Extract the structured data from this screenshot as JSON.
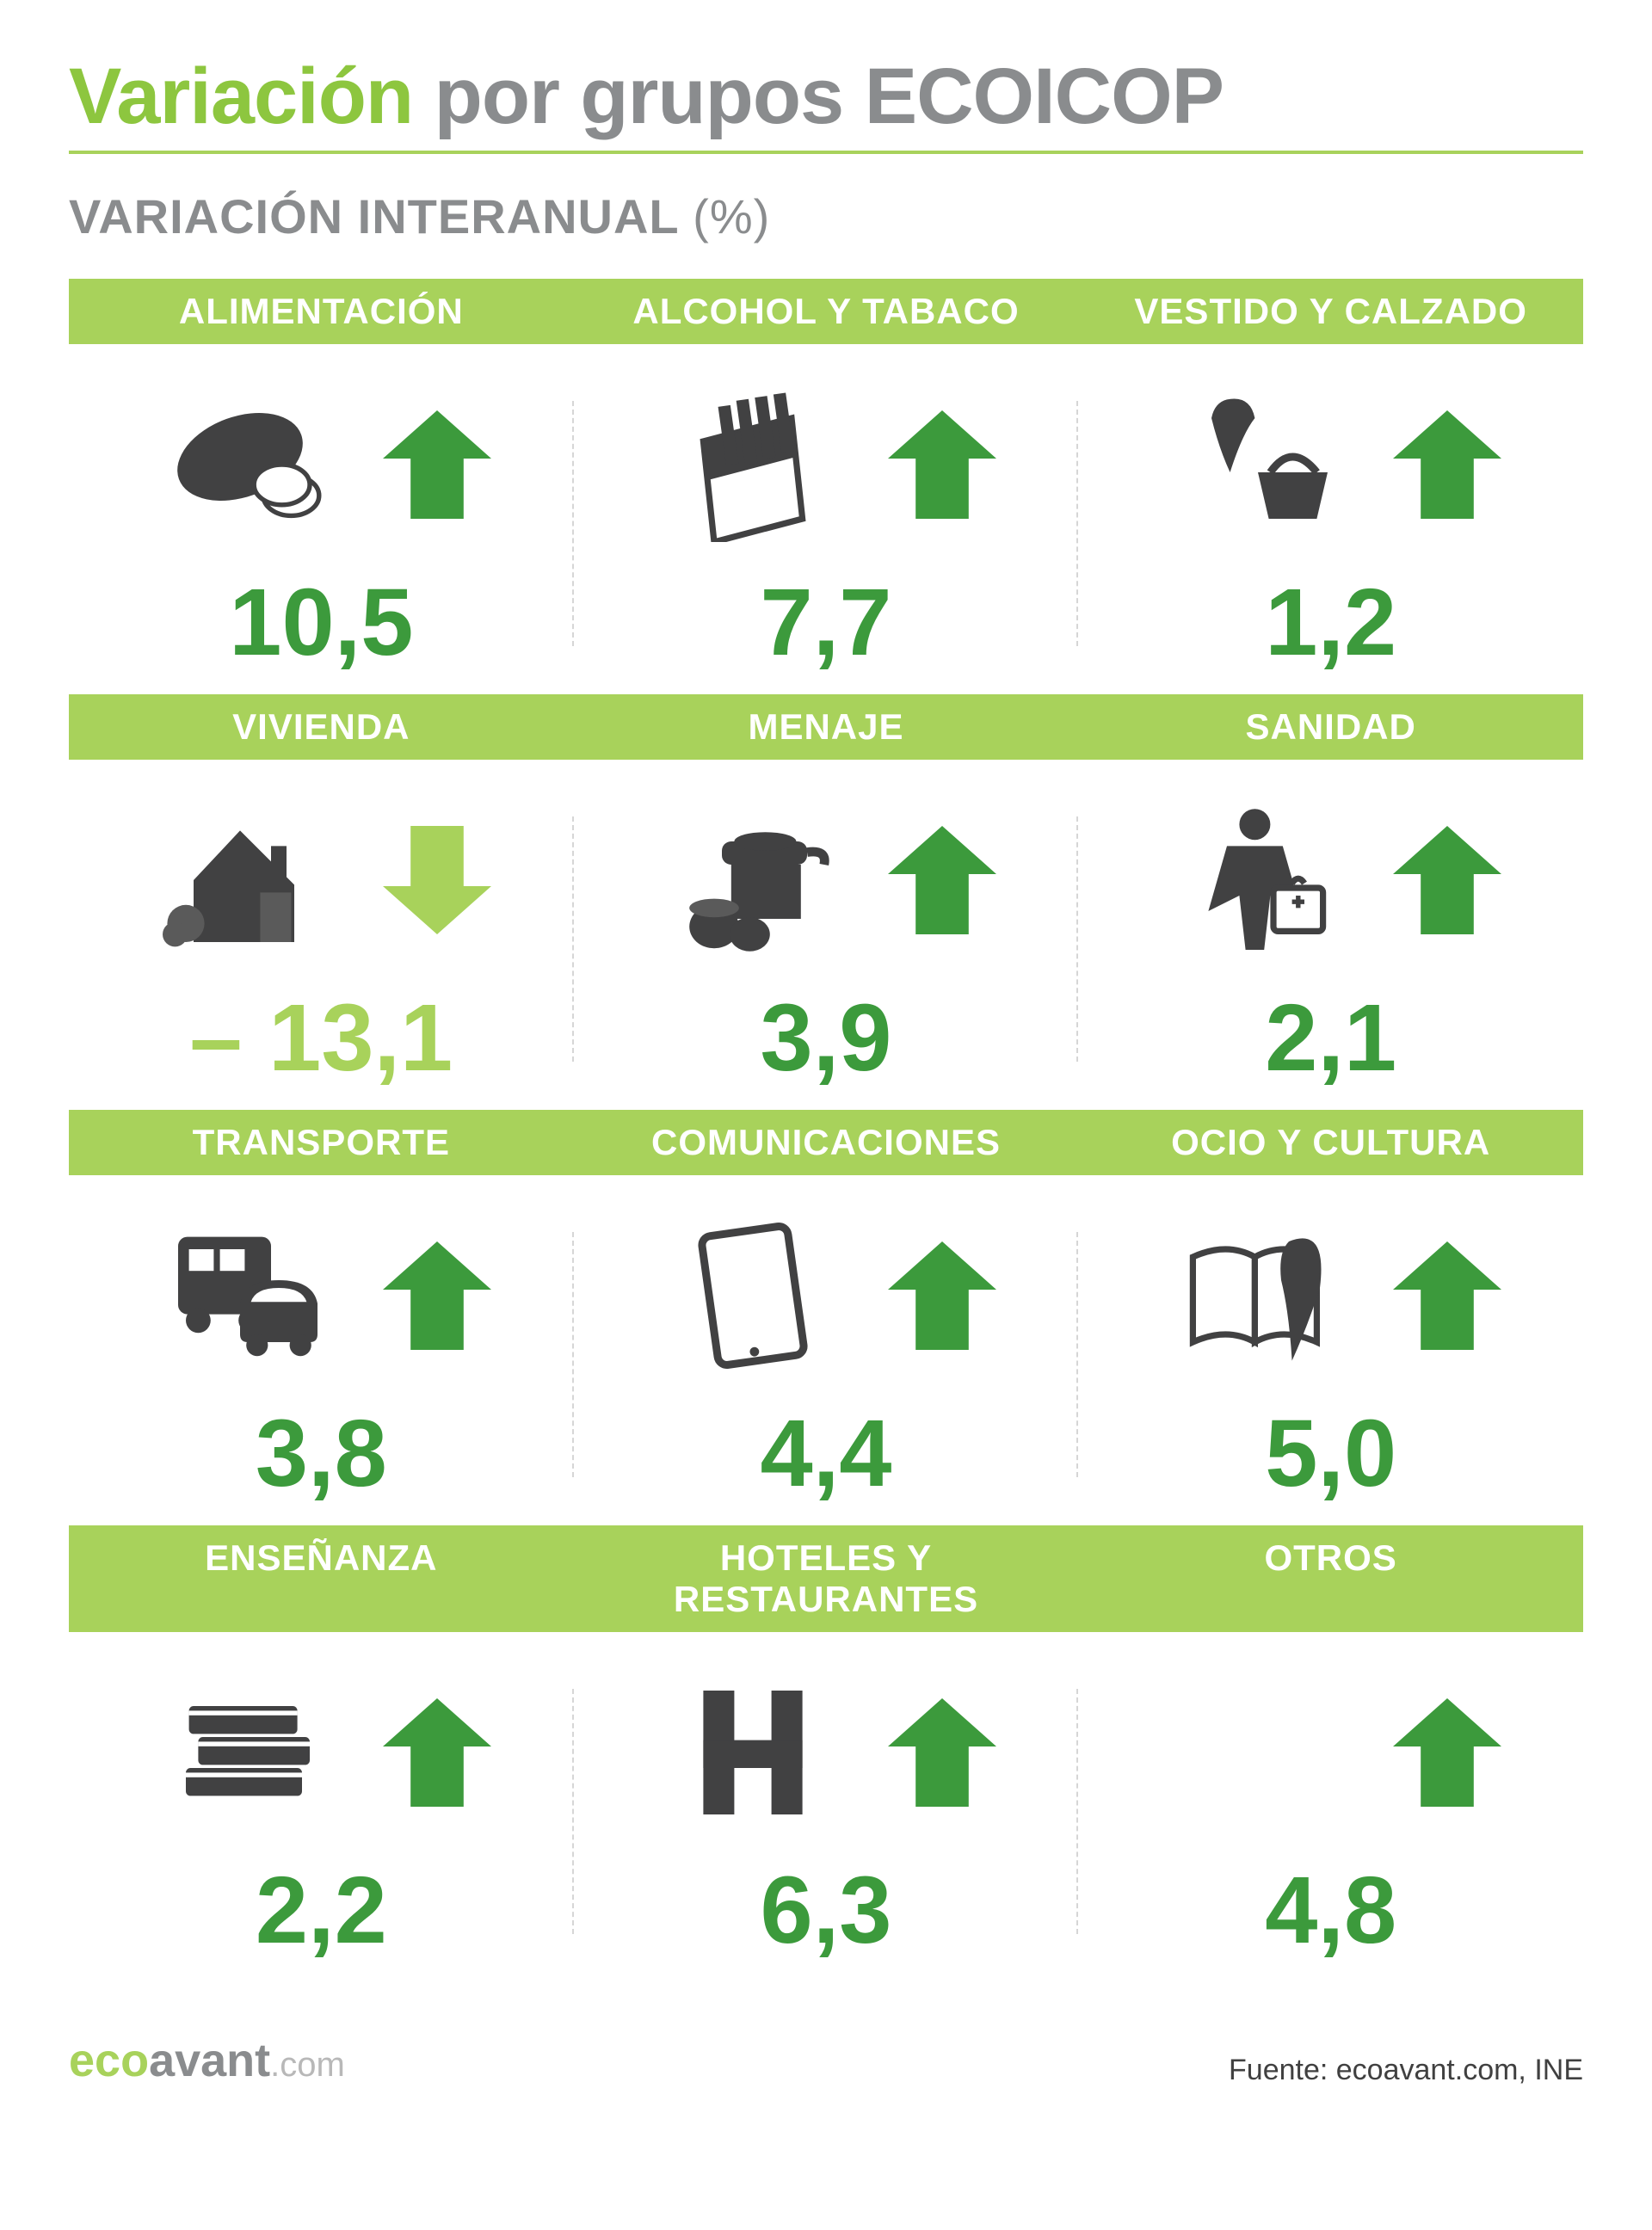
{
  "title": {
    "part1": "Variación",
    "part2": "por grupos",
    "part3": "ECOICOP"
  },
  "subtitle": {
    "label": "VARIACIÓN INTERANUAL",
    "unit": "(%)"
  },
  "colors": {
    "accent_bar": "#a8d25b",
    "arrow_up": "#3c9a3c",
    "arrow_down": "#a8d25b",
    "value_up": "#3c9a3c",
    "value_down": "#a8d25b",
    "icon": "#414142",
    "title_green": "#8dc63f",
    "title_gray": "#8a8c8e"
  },
  "rows": [
    {
      "items": [
        {
          "label": "ALIMENTACIÓN",
          "icon": "bread-icon",
          "value": "10,5",
          "direction": "up"
        },
        {
          "label": "ALCOHOL Y TABACO",
          "icon": "cigarette-icon",
          "value": "7,7",
          "direction": "up"
        },
        {
          "label": "VESTIDO Y CALZADO",
          "icon": "clothes-icon",
          "value": "1,2",
          "direction": "up"
        }
      ]
    },
    {
      "items": [
        {
          "label": "VIVIENDA",
          "icon": "house-icon",
          "value": "– 13,1",
          "direction": "down"
        },
        {
          "label": "MENAJE",
          "icon": "kitchen-icon",
          "value": "3,9",
          "direction": "up"
        },
        {
          "label": "SANIDAD",
          "icon": "nurse-icon",
          "value": "2,1",
          "direction": "up"
        }
      ]
    },
    {
      "items": [
        {
          "label": "TRANSPORTE",
          "icon": "bus-car-icon",
          "value": "3,8",
          "direction": "up"
        },
        {
          "label": "COMUNICACIONES",
          "icon": "tablet-icon",
          "value": "4,4",
          "direction": "up"
        },
        {
          "label": "OCIO Y CULTURA",
          "icon": "book-quill-icon",
          "value": "5,0",
          "direction": "up"
        }
      ]
    },
    {
      "items": [
        {
          "label": "ENSEÑANZA",
          "icon": "books-icon",
          "value": "2,2",
          "direction": "up"
        },
        {
          "label": "HOTELES Y RESTAURANTES",
          "icon": "hotel-icon",
          "value": "6,3",
          "direction": "up"
        },
        {
          "label": "OTROS",
          "icon": "none",
          "value": "4,8",
          "direction": "up"
        }
      ]
    }
  ],
  "footer": {
    "logo": {
      "eco": "eco",
      "avant": "avant",
      "dotcom": ".com"
    },
    "source": "Fuente: ecoavant.com, INE"
  }
}
